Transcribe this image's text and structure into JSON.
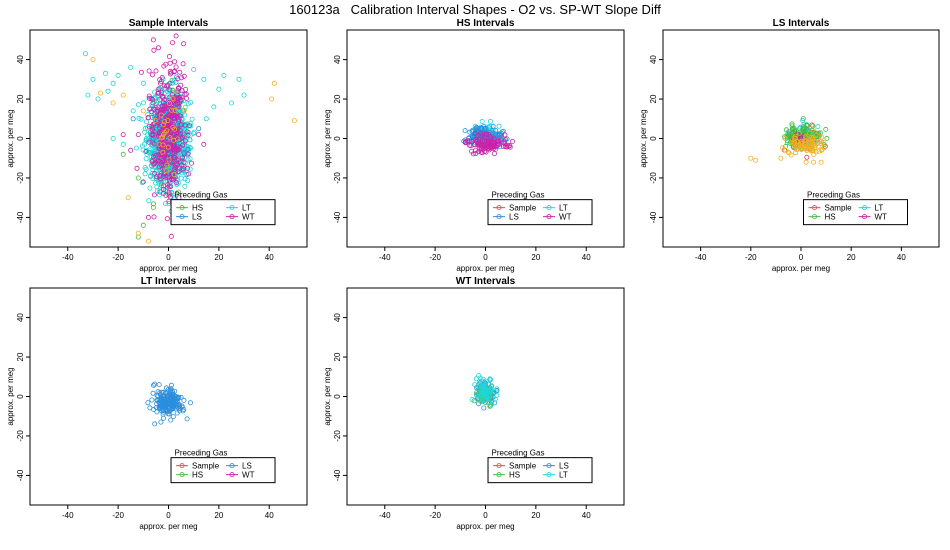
{
  "figure": {
    "title": "160123a   Calibration Interval Shapes - O2 vs. SP-WT Slope Diff"
  },
  "colors": {
    "Sample": "#e8474f",
    "HS": "#44bb44",
    "LS": "#2a8fe0",
    "LT": "#22d4d8",
    "WT": "#cc22aa",
    "orange": "#f0b020"
  },
  "chart_data": [
    {
      "type": "scatter",
      "title": "Sample Intervals",
      "xlabel": "approx. per meg",
      "ylabel": "approx. per meg",
      "xlim": [
        -55,
        55
      ],
      "ylim": [
        -55,
        55
      ],
      "xticks": [
        -40,
        -20,
        0,
        20,
        40
      ],
      "yticks": [
        -40,
        -20,
        0,
        20,
        40
      ],
      "legend": {
        "title": "Preceding Gas",
        "placement": "bottom-right",
        "entries": [
          "HS",
          "LT",
          "LS",
          "WT"
        ]
      },
      "series": [
        {
          "name": "HS",
          "color": "#44bb44",
          "cx": 0,
          "cy": 0,
          "sx": 3,
          "sy": 12,
          "n": 120,
          "points": [
            [
              -18,
              -8
            ],
            [
              -12,
              -20
            ],
            [
              -10,
              -44
            ],
            [
              -12,
              -50
            ],
            [
              -6,
              -35
            ],
            [
              2,
              -40
            ]
          ]
        },
        {
          "name": "LT",
          "color": "#22d4d8",
          "cx": 0,
          "cy": 0,
          "sx": 4,
          "sy": 11,
          "n": 900,
          "points": [
            [
              -33,
              43
            ],
            [
              -30,
              30
            ],
            [
              -28,
              20
            ],
            [
              -32,
              22
            ],
            [
              -25,
              33
            ],
            [
              -22,
              28
            ],
            [
              -24,
              24
            ],
            [
              -20,
              32
            ],
            [
              -15,
              36
            ],
            [
              -10,
              28
            ],
            [
              -14,
              14
            ],
            [
              10,
              35
            ],
            [
              14,
              30
            ],
            [
              20,
              25
            ],
            [
              18,
              16
            ],
            [
              22,
              32
            ],
            [
              28,
              30
            ],
            [
              30,
              22
            ],
            [
              25,
              18
            ],
            [
              15,
              10
            ],
            [
              -18,
              -3
            ],
            [
              -22,
              0
            ]
          ]
        },
        {
          "name": "LS",
          "color": "#2a8fe0",
          "cx": 0,
          "cy": 0,
          "sx": 3,
          "sy": 12,
          "n": 150,
          "points": [
            [
              -14,
              10
            ],
            [
              12,
              5
            ]
          ]
        },
        {
          "name": "WT",
          "color": "#cc22aa",
          "cx": 0,
          "cy": 5,
          "sx": 4,
          "sy": 17,
          "n": 350,
          "points": [
            [
              -12,
              2
            ],
            [
              -18,
              2
            ],
            [
              -15,
              -6
            ],
            [
              -10,
              -22
            ],
            [
              -8,
              -40
            ],
            [
              8,
              -18
            ],
            [
              12,
              2
            ],
            [
              14,
              -3
            ],
            [
              6,
              48
            ],
            [
              -6,
              50
            ],
            [
              3,
              52
            ],
            [
              -4,
              46
            ]
          ]
        },
        {
          "name": "orange",
          "color": "#f0b020",
          "cx": 0,
          "cy": 0,
          "sx": 2,
          "sy": 10,
          "n": 30,
          "points": [
            [
              42,
              28
            ],
            [
              41,
              20
            ],
            [
              50,
              9
            ],
            [
              -30,
              40
            ],
            [
              -27,
              23
            ],
            [
              -12,
              -48
            ],
            [
              -16,
              -30
            ],
            [
              -8,
              -52
            ],
            [
              -22,
              18
            ],
            [
              -18,
              22
            ],
            [
              -10,
              14
            ]
          ]
        }
      ]
    },
    {
      "type": "scatter",
      "title": "HS Intervals",
      "xlabel": "approx. per meg",
      "ylabel": "approx. per meg",
      "xlim": [
        -55,
        55
      ],
      "ylim": [
        -55,
        55
      ],
      "xticks": [
        -40,
        -20,
        0,
        20,
        40
      ],
      "yticks": [
        -40,
        -20,
        0,
        20,
        40
      ],
      "legend": {
        "title": "Preceding Gas",
        "placement": "bottom-right",
        "entries": [
          "Sample",
          "LT",
          "LS",
          "WT"
        ]
      },
      "series": [
        {
          "name": "Sample",
          "color": "#e8474f",
          "cx": 1,
          "cy": -1,
          "sx": 3,
          "sy": 2.5,
          "n": 60,
          "points": []
        },
        {
          "name": "LT",
          "color": "#22d4d8",
          "cx": 0,
          "cy": 2,
          "sx": 3,
          "sy": 2.5,
          "n": 50,
          "points": []
        },
        {
          "name": "LS",
          "color": "#2a8fe0",
          "cx": 0,
          "cy": 1,
          "sx": 3.5,
          "sy": 2.5,
          "n": 120,
          "points": []
        },
        {
          "name": "WT",
          "color": "#cc22aa",
          "cx": 1,
          "cy": -3,
          "sx": 4,
          "sy": 2.5,
          "n": 100,
          "points": []
        }
      ]
    },
    {
      "type": "scatter",
      "title": "LS Intervals",
      "xlabel": "approx. per meg",
      "ylabel": "approx. per meg",
      "xlim": [
        -55,
        55
      ],
      "ylim": [
        -55,
        55
      ],
      "xticks": [
        -40,
        -20,
        0,
        20,
        40
      ],
      "yticks": [
        -40,
        -20,
        0,
        20,
        40
      ],
      "legend": {
        "title": "Preceding Gas",
        "placement": "bottom-right",
        "entries": [
          "Sample",
          "LT",
          "HS",
          "WT"
        ]
      },
      "series": [
        {
          "name": "Sample",
          "color": "#e8474f",
          "cx": 1,
          "cy": -1,
          "sx": 3,
          "sy": 3,
          "n": 40,
          "points": []
        },
        {
          "name": "LT",
          "color": "#22d4d8",
          "cx": 0,
          "cy": 1,
          "sx": 3,
          "sy": 3,
          "n": 60,
          "points": []
        },
        {
          "name": "HS",
          "color": "#44bb44",
          "cx": 0,
          "cy": 1,
          "sx": 3.5,
          "sy": 3,
          "n": 120,
          "points": []
        },
        {
          "name": "WT",
          "color": "#cc22aa",
          "cx": 0,
          "cy": 0,
          "sx": 2,
          "sy": 2,
          "n": 15,
          "points": []
        },
        {
          "name": "orange",
          "color": "#f0b020",
          "cx": 2,
          "cy": -4,
          "sx": 4,
          "sy": 3.5,
          "n": 90,
          "points": [
            [
              -20,
              -10
            ],
            [
              -18,
              -11
            ],
            [
              -8,
              -10
            ],
            [
              5,
              -12
            ],
            [
              8,
              -12
            ]
          ]
        }
      ]
    },
    {
      "type": "scatter",
      "title": "LT Intervals",
      "xlabel": "approx. per meg",
      "ylabel": "approx. per meg",
      "xlim": [
        -55,
        55
      ],
      "ylim": [
        -55,
        55
      ],
      "xticks": [
        -40,
        -20,
        0,
        20,
        40
      ],
      "yticks": [
        -40,
        -20,
        0,
        20,
        40
      ],
      "legend": {
        "title": "Preceding Gas",
        "placement": "bottom-right",
        "entries": [
          "Sample",
          "LS",
          "HS",
          "WT"
        ]
      },
      "series": [
        {
          "name": "Sample",
          "color": "#e8474f",
          "cx": 0,
          "cy": -3,
          "sx": 2,
          "sy": 2,
          "n": 8,
          "points": []
        },
        {
          "name": "HS",
          "color": "#44bb44",
          "cx": 0,
          "cy": -3,
          "sx": 2,
          "sy": 2,
          "n": 6,
          "points": []
        },
        {
          "name": "WT",
          "color": "#cc22aa",
          "cx": 0,
          "cy": -3,
          "sx": 2,
          "sy": 2,
          "n": 6,
          "points": []
        },
        {
          "name": "LS",
          "color": "#2a8fe0",
          "cx": 0,
          "cy": -3,
          "sx": 3,
          "sy": 3.5,
          "n": 180,
          "points": [
            [
              -3,
              -13
            ],
            [
              -2,
              -11
            ]
          ]
        }
      ]
    },
    {
      "type": "scatter",
      "title": "WT Intervals",
      "xlabel": "approx. per meg",
      "ylabel": "approx. per meg",
      "xlim": [
        -55,
        55
      ],
      "ylim": [
        -55,
        55
      ],
      "xticks": [
        -40,
        -20,
        0,
        20,
        40
      ],
      "yticks": [
        -40,
        -20,
        0,
        20,
        40
      ],
      "legend": {
        "title": "Preceding Gas",
        "placement": "bottom-right",
        "entries": [
          "Sample",
          "LS",
          "HS",
          "LT"
        ]
      },
      "series": [
        {
          "name": "Sample",
          "color": "#e8474f",
          "cx": 0,
          "cy": 1,
          "sx": 1.5,
          "sy": 2,
          "n": 15,
          "points": []
        },
        {
          "name": "LS",
          "color": "#2a8fe0",
          "cx": 0,
          "cy": 2,
          "sx": 2,
          "sy": 3,
          "n": 40,
          "points": []
        },
        {
          "name": "HS",
          "color": "#44bb44",
          "cx": 0,
          "cy": 1,
          "sx": 2,
          "sy": 3,
          "n": 60,
          "points": []
        },
        {
          "name": "LT",
          "color": "#22d4d8",
          "cx": 0,
          "cy": 3,
          "sx": 2,
          "sy": 3,
          "n": 80,
          "points": []
        }
      ]
    }
  ]
}
